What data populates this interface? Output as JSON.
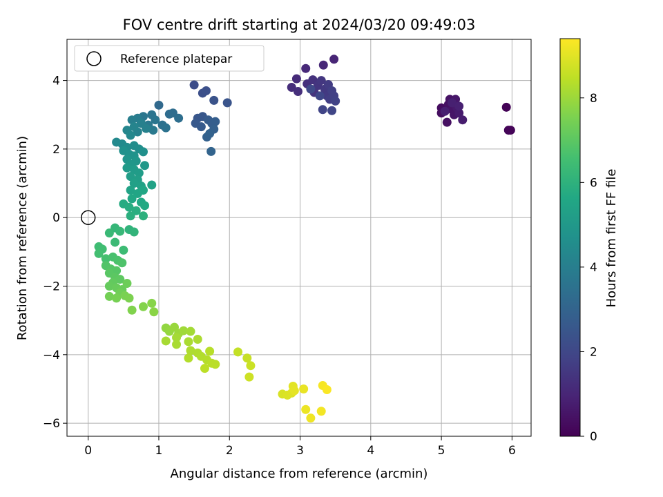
{
  "chart_data": {
    "type": "scatter",
    "title": "FOV centre drift starting at 2024/03/20 09:49:03",
    "xlabel": "Angular distance from reference (arcmin)",
    "ylabel": "Rotation from reference (arcmin)",
    "xlim": [
      -0.3,
      6.27
    ],
    "ylim": [
      -6.38,
      5.2
    ],
    "xticks": [
      0,
      1,
      2,
      3,
      4,
      5,
      6
    ],
    "yticks": [
      -6,
      -4,
      -2,
      0,
      2,
      4
    ],
    "grid": true,
    "legend": {
      "position": "top-left",
      "entries": [
        "Reference platepar"
      ]
    },
    "reference_point": {
      "x": 0,
      "y": 0,
      "label": "Reference platepar"
    },
    "colorbar": {
      "label": "Hours from first FF file",
      "range": [
        0,
        9.4
      ],
      "ticks": [
        0,
        2,
        4,
        6,
        8
      ],
      "colormap": "viridis"
    },
    "series": [
      {
        "name": "FOV centre",
        "points": [
          {
            "x": 5.92,
            "y": 3.22,
            "c": 0.05
          },
          {
            "x": 5.95,
            "y": 2.55,
            "c": 0.1
          },
          {
            "x": 5.98,
            "y": 2.55,
            "c": 0.12
          },
          {
            "x": 5.0,
            "y": 3.2,
            "c": 0.3
          },
          {
            "x": 5.0,
            "y": 3.05,
            "c": 0.35
          },
          {
            "x": 5.08,
            "y": 2.78,
            "c": 0.4
          },
          {
            "x": 5.1,
            "y": 3.3,
            "c": 0.42
          },
          {
            "x": 5.12,
            "y": 3.45,
            "c": 0.45
          },
          {
            "x": 5.15,
            "y": 3.15,
            "c": 0.5
          },
          {
            "x": 5.18,
            "y": 3.0,
            "c": 0.55
          },
          {
            "x": 5.2,
            "y": 3.45,
            "c": 0.6
          },
          {
            "x": 5.22,
            "y": 3.2,
            "c": 0.65
          },
          {
            "x": 5.25,
            "y": 3.05,
            "c": 0.7
          },
          {
            "x": 5.3,
            "y": 2.85,
            "c": 0.75
          },
          {
            "x": 5.05,
            "y": 3.1,
            "c": 0.8
          },
          {
            "x": 5.15,
            "y": 3.35,
            "c": 0.82
          },
          {
            "x": 5.25,
            "y": 3.25,
            "c": 0.85
          },
          {
            "x": 3.48,
            "y": 4.62,
            "c": 1.0
          },
          {
            "x": 3.33,
            "y": 4.45,
            "c": 1.05
          },
          {
            "x": 3.08,
            "y": 4.35,
            "c": 1.1
          },
          {
            "x": 2.95,
            "y": 4.05,
            "c": 1.15
          },
          {
            "x": 2.88,
            "y": 3.8,
            "c": 1.2
          },
          {
            "x": 2.97,
            "y": 3.68,
            "c": 1.25
          },
          {
            "x": 3.1,
            "y": 3.9,
            "c": 1.3
          },
          {
            "x": 3.18,
            "y": 4.02,
            "c": 1.35
          },
          {
            "x": 3.2,
            "y": 3.65,
            "c": 1.4
          },
          {
            "x": 3.25,
            "y": 3.85,
            "c": 1.45
          },
          {
            "x": 3.3,
            "y": 4.0,
            "c": 1.5
          },
          {
            "x": 3.35,
            "y": 3.75,
            "c": 1.55
          },
          {
            "x": 3.38,
            "y": 3.55,
            "c": 1.6
          },
          {
            "x": 3.4,
            "y": 3.88,
            "c": 1.65
          },
          {
            "x": 3.42,
            "y": 3.45,
            "c": 1.7
          },
          {
            "x": 3.45,
            "y": 3.7,
            "c": 1.75
          },
          {
            "x": 3.48,
            "y": 3.55,
            "c": 1.8
          },
          {
            "x": 3.5,
            "y": 3.4,
            "c": 1.85
          },
          {
            "x": 3.32,
            "y": 3.15,
            "c": 1.9
          },
          {
            "x": 3.45,
            "y": 3.12,
            "c": 1.95
          },
          {
            "x": 3.28,
            "y": 3.55,
            "c": 2.0
          },
          {
            "x": 3.15,
            "y": 3.75,
            "c": 2.05
          },
          {
            "x": 1.5,
            "y": 3.87,
            "c": 2.2
          },
          {
            "x": 1.62,
            "y": 3.63,
            "c": 2.25
          },
          {
            "x": 1.67,
            "y": 3.7,
            "c": 2.3
          },
          {
            "x": 1.78,
            "y": 3.42,
            "c": 2.4
          },
          {
            "x": 1.97,
            "y": 3.35,
            "c": 2.45
          },
          {
            "x": 1.55,
            "y": 2.9,
            "c": 2.5
          },
          {
            "x": 1.62,
            "y": 2.95,
            "c": 2.55
          },
          {
            "x": 1.52,
            "y": 2.75,
            "c": 2.6
          },
          {
            "x": 1.6,
            "y": 2.65,
            "c": 2.65
          },
          {
            "x": 1.7,
            "y": 2.85,
            "c": 2.7
          },
          {
            "x": 1.75,
            "y": 2.75,
            "c": 2.75
          },
          {
            "x": 1.8,
            "y": 2.8,
            "c": 2.8
          },
          {
            "x": 1.78,
            "y": 2.58,
            "c": 2.85
          },
          {
            "x": 1.68,
            "y": 2.35,
            "c": 2.9
          },
          {
            "x": 1.72,
            "y": 2.45,
            "c": 2.95
          },
          {
            "x": 1.74,
            "y": 1.93,
            "c": 3.0
          },
          {
            "x": 1.0,
            "y": 3.28,
            "c": 3.2
          },
          {
            "x": 1.15,
            "y": 3.02,
            "c": 3.3
          },
          {
            "x": 1.2,
            "y": 3.05,
            "c": 3.35
          },
          {
            "x": 1.28,
            "y": 2.9,
            "c": 3.4
          },
          {
            "x": 1.05,
            "y": 2.7,
            "c": 3.5
          },
          {
            "x": 1.1,
            "y": 2.62,
            "c": 3.55
          },
          {
            "x": 0.9,
            "y": 3.0,
            "c": 3.6
          },
          {
            "x": 0.95,
            "y": 2.85,
            "c": 3.65
          },
          {
            "x": 0.78,
            "y": 2.95,
            "c": 3.7
          },
          {
            "x": 0.85,
            "y": 2.7,
            "c": 3.75
          },
          {
            "x": 0.92,
            "y": 2.55,
            "c": 3.8
          },
          {
            "x": 0.7,
            "y": 2.9,
            "c": 3.9
          },
          {
            "x": 0.62,
            "y": 2.85,
            "c": 4.0
          },
          {
            "x": 0.75,
            "y": 2.75,
            "c": 4.05
          },
          {
            "x": 0.82,
            "y": 2.6,
            "c": 4.1
          },
          {
            "x": 0.7,
            "y": 2.5,
            "c": 4.15
          },
          {
            "x": 0.65,
            "y": 2.65,
            "c": 4.2
          },
          {
            "x": 0.55,
            "y": 2.55,
            "c": 4.3
          },
          {
            "x": 0.6,
            "y": 2.4,
            "c": 4.35
          },
          {
            "x": 0.4,
            "y": 2.2,
            "c": 4.4
          },
          {
            "x": 0.48,
            "y": 2.15,
            "c": 4.45
          },
          {
            "x": 0.55,
            "y": 2.05,
            "c": 4.5
          },
          {
            "x": 0.65,
            "y": 2.1,
            "c": 4.55
          },
          {
            "x": 0.72,
            "y": 2.0,
            "c": 4.6
          },
          {
            "x": 0.78,
            "y": 1.92,
            "c": 4.65
          },
          {
            "x": 0.5,
            "y": 1.95,
            "c": 4.7
          },
          {
            "x": 0.58,
            "y": 1.85,
            "c": 4.75
          },
          {
            "x": 0.65,
            "y": 1.8,
            "c": 4.8
          },
          {
            "x": 0.55,
            "y": 1.7,
            "c": 4.85
          },
          {
            "x": 0.68,
            "y": 1.65,
            "c": 4.9
          },
          {
            "x": 0.6,
            "y": 1.55,
            "c": 4.95
          },
          {
            "x": 0.8,
            "y": 1.52,
            "c": 5.0
          },
          {
            "x": 0.55,
            "y": 1.45,
            "c": 5.05
          },
          {
            "x": 0.65,
            "y": 1.4,
            "c": 5.1
          },
          {
            "x": 0.72,
            "y": 1.3,
            "c": 5.15
          },
          {
            "x": 0.6,
            "y": 1.2,
            "c": 5.2
          },
          {
            "x": 0.7,
            "y": 1.1,
            "c": 5.25
          },
          {
            "x": 0.65,
            "y": 1.0,
            "c": 5.3
          },
          {
            "x": 0.75,
            "y": 0.92,
            "c": 5.35
          },
          {
            "x": 0.9,
            "y": 0.95,
            "c": 5.4
          },
          {
            "x": 0.6,
            "y": 0.8,
            "c": 5.45
          },
          {
            "x": 0.7,
            "y": 0.7,
            "c": 5.5
          },
          {
            "x": 0.78,
            "y": 0.8,
            "c": 5.55
          },
          {
            "x": 0.62,
            "y": 0.55,
            "c": 5.6
          },
          {
            "x": 0.75,
            "y": 0.45,
            "c": 5.65
          },
          {
            "x": 0.8,
            "y": 0.35,
            "c": 5.7
          },
          {
            "x": 0.5,
            "y": 0.4,
            "c": 5.75
          },
          {
            "x": 0.58,
            "y": 0.3,
            "c": 5.8
          },
          {
            "x": 0.68,
            "y": 0.2,
            "c": 5.85
          },
          {
            "x": 0.6,
            "y": 0.05,
            "c": 5.9
          },
          {
            "x": 0.78,
            "y": 0.05,
            "c": 5.95
          },
          {
            "x": 0.58,
            "y": -0.35,
            "c": 6.05
          },
          {
            "x": 0.65,
            "y": -0.42,
            "c": 6.1
          },
          {
            "x": 0.38,
            "y": -0.3,
            "c": 6.2
          },
          {
            "x": 0.45,
            "y": -0.4,
            "c": 6.25
          },
          {
            "x": 0.3,
            "y": -0.45,
            "c": 6.3
          },
          {
            "x": 0.38,
            "y": -0.72,
            "c": 6.35
          },
          {
            "x": 0.5,
            "y": -0.95,
            "c": 6.4
          },
          {
            "x": 0.15,
            "y": -0.85,
            "c": 6.45
          },
          {
            "x": 0.2,
            "y": -0.92,
            "c": 6.5
          },
          {
            "x": 0.15,
            "y": -1.05,
            "c": 6.55
          },
          {
            "x": 0.25,
            "y": -1.2,
            "c": 6.6
          },
          {
            "x": 0.35,
            "y": -1.15,
            "c": 6.65
          },
          {
            "x": 0.42,
            "y": -1.25,
            "c": 6.7
          },
          {
            "x": 0.48,
            "y": -1.32,
            "c": 6.75
          },
          {
            "x": 0.25,
            "y": -1.4,
            "c": 6.8
          },
          {
            "x": 0.32,
            "y": -1.5,
            "c": 6.85
          },
          {
            "x": 0.4,
            "y": -1.55,
            "c": 6.9
          },
          {
            "x": 0.3,
            "y": -1.62,
            "c": 6.95
          },
          {
            "x": 0.38,
            "y": -1.75,
            "c": 7.0
          },
          {
            "x": 0.45,
            "y": -1.8,
            "c": 7.05
          },
          {
            "x": 0.35,
            "y": -1.9,
            "c": 7.1
          },
          {
            "x": 0.3,
            "y": -2.0,
            "c": 7.15
          },
          {
            "x": 0.4,
            "y": -2.05,
            "c": 7.2
          },
          {
            "x": 0.48,
            "y": -2.1,
            "c": 7.25
          },
          {
            "x": 0.55,
            "y": -1.92,
            "c": 7.3
          },
          {
            "x": 0.45,
            "y": -2.2,
            "c": 7.35
          },
          {
            "x": 0.3,
            "y": -2.3,
            "c": 7.4
          },
          {
            "x": 0.4,
            "y": -2.35,
            "c": 7.45
          },
          {
            "x": 0.52,
            "y": -2.28,
            "c": 7.5
          },
          {
            "x": 0.58,
            "y": -2.35,
            "c": 7.55
          },
          {
            "x": 0.62,
            "y": -2.7,
            "c": 7.6
          },
          {
            "x": 0.78,
            "y": -2.6,
            "c": 7.65
          },
          {
            "x": 0.9,
            "y": -2.5,
            "c": 7.7
          },
          {
            "x": 0.93,
            "y": -2.75,
            "c": 7.75
          },
          {
            "x": 1.1,
            "y": -3.22,
            "c": 7.85
          },
          {
            "x": 1.15,
            "y": -3.32,
            "c": 7.9
          },
          {
            "x": 1.22,
            "y": -3.2,
            "c": 7.95
          },
          {
            "x": 1.28,
            "y": -3.38,
            "c": 8.0
          },
          {
            "x": 1.35,
            "y": -3.3,
            "c": 8.05
          },
          {
            "x": 1.45,
            "y": -3.32,
            "c": 8.1
          },
          {
            "x": 1.25,
            "y": -3.5,
            "c": 8.12
          },
          {
            "x": 1.1,
            "y": -3.6,
            "c": 8.15
          },
          {
            "x": 1.25,
            "y": -3.7,
            "c": 8.18
          },
          {
            "x": 1.42,
            "y": -3.62,
            "c": 8.2
          },
          {
            "x": 1.55,
            "y": -3.55,
            "c": 8.22
          },
          {
            "x": 1.45,
            "y": -3.88,
            "c": 8.25
          },
          {
            "x": 1.55,
            "y": -3.95,
            "c": 8.28
          },
          {
            "x": 1.6,
            "y": -4.05,
            "c": 8.3
          },
          {
            "x": 1.42,
            "y": -4.1,
            "c": 8.32
          },
          {
            "x": 1.68,
            "y": -4.15,
            "c": 8.35
          },
          {
            "x": 1.72,
            "y": -3.9,
            "c": 8.38
          },
          {
            "x": 1.75,
            "y": -4.25,
            "c": 8.4
          },
          {
            "x": 1.8,
            "y": -4.28,
            "c": 8.42
          },
          {
            "x": 1.65,
            "y": -4.4,
            "c": 8.45
          },
          {
            "x": 2.12,
            "y": -3.92,
            "c": 8.55
          },
          {
            "x": 2.25,
            "y": -4.1,
            "c": 8.6
          },
          {
            "x": 2.3,
            "y": -4.32,
            "c": 8.65
          },
          {
            "x": 2.28,
            "y": -4.65,
            "c": 8.7
          },
          {
            "x": 2.75,
            "y": -5.15,
            "c": 8.85
          },
          {
            "x": 2.82,
            "y": -5.18,
            "c": 8.9
          },
          {
            "x": 2.88,
            "y": -5.12,
            "c": 8.95
          },
          {
            "x": 2.9,
            "y": -4.92,
            "c": 9.0
          },
          {
            "x": 2.92,
            "y": -5.05,
            "c": 9.05
          },
          {
            "x": 3.05,
            "y": -5.0,
            "c": 9.1
          },
          {
            "x": 3.08,
            "y": -5.6,
            "c": 9.15
          },
          {
            "x": 3.15,
            "y": -5.85,
            "c": 9.2
          },
          {
            "x": 3.3,
            "y": -5.65,
            "c": 9.25
          },
          {
            "x": 3.32,
            "y": -4.9,
            "c": 9.3
          },
          {
            "x": 3.38,
            "y": -5.02,
            "c": 9.35
          }
        ]
      }
    ]
  }
}
